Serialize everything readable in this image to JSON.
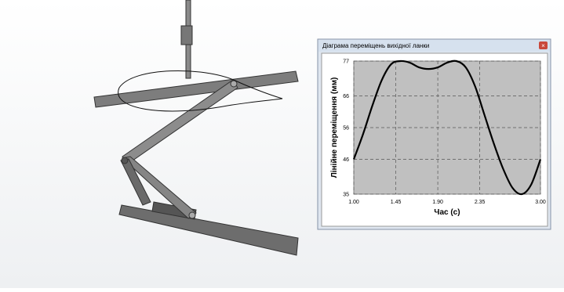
{
  "window": {
    "title": "Діаграма переміщень вихідної ланки"
  },
  "chart_data": {
    "type": "line",
    "x_label": "Час (с)",
    "y_label": "Лінійне переміщення (мм)",
    "x": [
      1.0,
      1.1,
      1.2,
      1.3,
      1.4,
      1.5,
      1.6,
      1.7,
      1.8,
      1.9,
      2.0,
      2.1,
      2.2,
      2.3,
      2.4,
      2.5,
      2.6,
      2.7,
      2.8,
      2.9,
      3.0
    ],
    "values": [
      46,
      54,
      63,
      71,
      76,
      77,
      76.5,
      75,
      74.5,
      75,
      76.5,
      77,
      75,
      69,
      60,
      51,
      43,
      37,
      35,
      38,
      46
    ],
    "color": "#000000",
    "xlim": [
      1.0,
      3.0
    ],
    "xticks": [
      {
        "value": 1.0,
        "label": "1.00"
      },
      1.45,
      {
        "value": 1.9,
        "label": "1.90"
      },
      2.35,
      {
        "value": 3.0,
        "label": "3.00"
      }
    ],
    "ylim": [
      35,
      77
    ],
    "yticks": [
      35,
      46,
      56,
      66,
      77
    ],
    "grid": true
  }
}
